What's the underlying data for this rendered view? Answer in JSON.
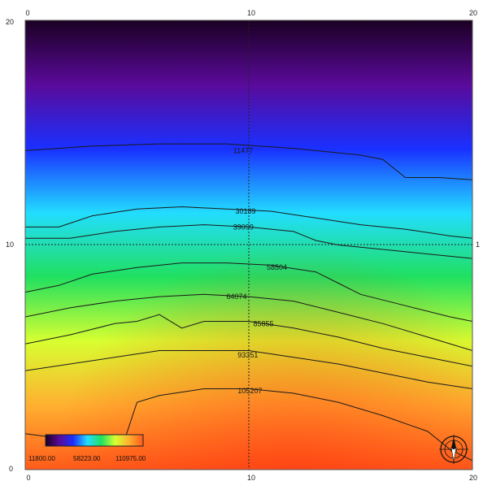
{
  "chart_data": {
    "type": "heatmap",
    "title": "",
    "xlabel": "",
    "ylabel": "",
    "xlim": [
      0,
      20
    ],
    "ylim": [
      0,
      20
    ],
    "grid": "dashed crosshair at center",
    "ticks": {
      "top": [
        "0",
        "10",
        "20"
      ],
      "bottom": [
        "0",
        "10",
        "20"
      ],
      "left": [
        "0",
        "10",
        "20"
      ],
      "right": [
        "1"
      ]
    },
    "colormap_colors": [
      "#1a0022",
      "#5a0a9a",
      "#1a30ff",
      "#22ddff",
      "#20e060",
      "#d8ff30",
      "#ffb030",
      "#ff5a1a"
    ],
    "colorbar": {
      "labels": [
        "11800.00",
        "58223.00",
        "110975.00"
      ]
    },
    "contours": [
      {
        "label": "11477",
        "points": [
          [
            0.0,
            14.2
          ],
          [
            3.0,
            14.4
          ],
          [
            6.0,
            14.5
          ],
          [
            9.0,
            14.5
          ],
          [
            12.0,
            14.3
          ],
          [
            15.0,
            14.0
          ],
          [
            16.0,
            13.8
          ],
          [
            17.0,
            13.0
          ],
          [
            18.5,
            13.0
          ],
          [
            20.0,
            12.9
          ]
        ]
      },
      {
        "label": "30189",
        "points": [
          [
            0.0,
            10.8
          ],
          [
            1.5,
            10.8
          ],
          [
            3.0,
            11.3
          ],
          [
            5.0,
            11.6
          ],
          [
            7.0,
            11.7
          ],
          [
            9.0,
            11.6
          ],
          [
            11.0,
            11.5
          ],
          [
            13.0,
            11.2
          ],
          [
            15.0,
            10.9
          ],
          [
            17.0,
            10.7
          ],
          [
            19.0,
            10.4
          ],
          [
            20.0,
            10.3
          ]
        ]
      },
      {
        "label": "39099",
        "points": [
          [
            0.0,
            10.3
          ],
          [
            2.0,
            10.3
          ],
          [
            4.0,
            10.6
          ],
          [
            6.0,
            10.8
          ],
          [
            8.0,
            10.9
          ],
          [
            10.0,
            10.8
          ],
          [
            12.0,
            10.6
          ],
          [
            13.0,
            10.2
          ],
          [
            14.0,
            10.0
          ],
          [
            16.0,
            9.8
          ],
          [
            18.0,
            9.6
          ],
          [
            20.0,
            9.4
          ]
        ]
      },
      {
        "label": "58504",
        "points": [
          [
            0.0,
            7.9
          ],
          [
            1.5,
            8.2
          ],
          [
            3.0,
            8.7
          ],
          [
            5.0,
            9.0
          ],
          [
            7.0,
            9.2
          ],
          [
            9.0,
            9.2
          ],
          [
            11.0,
            9.1
          ],
          [
            13.0,
            8.8
          ],
          [
            14.0,
            8.3
          ],
          [
            15.0,
            7.8
          ],
          [
            17.0,
            7.3
          ],
          [
            19.0,
            6.8
          ],
          [
            20.0,
            6.6
          ]
        ]
      },
      {
        "label": "64074",
        "points": [
          [
            0.0,
            6.8
          ],
          [
            2.0,
            7.2
          ],
          [
            4.0,
            7.5
          ],
          [
            6.0,
            7.7
          ],
          [
            8.0,
            7.8
          ],
          [
            10.0,
            7.7
          ],
          [
            12.0,
            7.5
          ],
          [
            14.0,
            7.0
          ],
          [
            16.0,
            6.5
          ],
          [
            18.0,
            5.9
          ],
          [
            20.0,
            5.3
          ]
        ]
      },
      {
        "label": "85855",
        "points": [
          [
            0.0,
            5.6
          ],
          [
            2.0,
            6.0
          ],
          [
            4.0,
            6.5
          ],
          [
            5.0,
            6.6
          ],
          [
            6.0,
            6.9
          ],
          [
            7.0,
            6.3
          ],
          [
            8.0,
            6.6
          ],
          [
            10.0,
            6.6
          ],
          [
            12.0,
            6.3
          ],
          [
            14.0,
            5.9
          ],
          [
            16.0,
            5.4
          ],
          [
            18.0,
            5.0
          ],
          [
            20.0,
            4.6
          ]
        ]
      },
      {
        "label": "93351",
        "points": [
          [
            0.0,
            4.4
          ],
          [
            2.0,
            4.7
          ],
          [
            4.0,
            5.0
          ],
          [
            6.0,
            5.3
          ],
          [
            8.0,
            5.3
          ],
          [
            10.0,
            5.3
          ],
          [
            12.0,
            5.0
          ],
          [
            14.0,
            4.7
          ],
          [
            16.0,
            4.3
          ],
          [
            18.0,
            3.9
          ],
          [
            20.0,
            3.6
          ]
        ]
      },
      {
        "label": "105207",
        "points": [
          [
            0.0,
            1.6
          ],
          [
            1.5,
            1.4
          ],
          [
            3.0,
            1.5
          ],
          [
            4.5,
            1.5
          ],
          [
            5.0,
            3.0
          ],
          [
            6.0,
            3.3
          ],
          [
            8.0,
            3.6
          ],
          [
            10.0,
            3.6
          ],
          [
            12.0,
            3.4
          ],
          [
            14.0,
            3.0
          ],
          [
            16.0,
            2.4
          ],
          [
            18.0,
            1.7
          ],
          [
            19.0,
            0.9
          ],
          [
            20.0,
            0.4
          ]
        ]
      }
    ],
    "contour_label_positions": {
      "11477": [
        9.3,
        14.2
      ],
      "30189": [
        9.4,
        11.5
      ],
      "39099": [
        9.3,
        10.8
      ],
      "58504": [
        10.8,
        9.0
      ],
      "64074": [
        9.0,
        7.7
      ],
      "85855": [
        10.2,
        6.5
      ],
      "93351": [
        9.5,
        5.1
      ],
      "105207": [
        9.5,
        3.5
      ]
    }
  }
}
